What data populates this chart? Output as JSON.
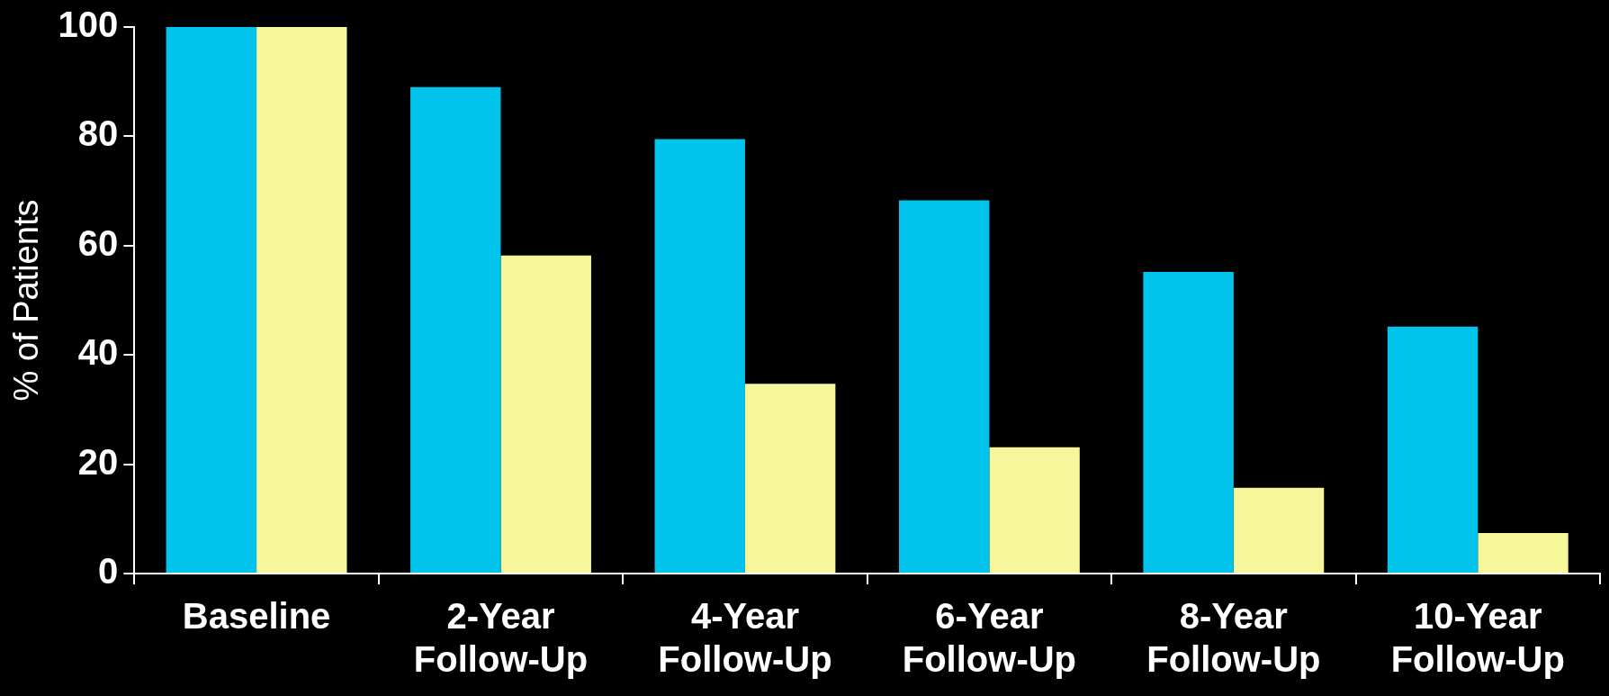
{
  "chart_data": {
    "type": "bar",
    "ylabel": "% of Patients",
    "categories": [
      "Baseline",
      "2-Year Follow-Up",
      "4-Year Follow-Up",
      "6-Year Follow-Up",
      "8-Year Follow-Up",
      "10-Year Follow-Up"
    ],
    "series": [
      {
        "color": "#00c4ec",
        "values": [
          100,
          89,
          79.5,
          68.3,
          55.2,
          45.2
        ]
      },
      {
        "color": "#f6f69a",
        "values": [
          100,
          58.2,
          34.7,
          23.1,
          15.7,
          7.4
        ]
      }
    ],
    "ylim": [
      0,
      100
    ],
    "yticks": [
      0,
      20,
      40,
      60,
      80,
      100
    ],
    "grid": false,
    "legend": false
  }
}
